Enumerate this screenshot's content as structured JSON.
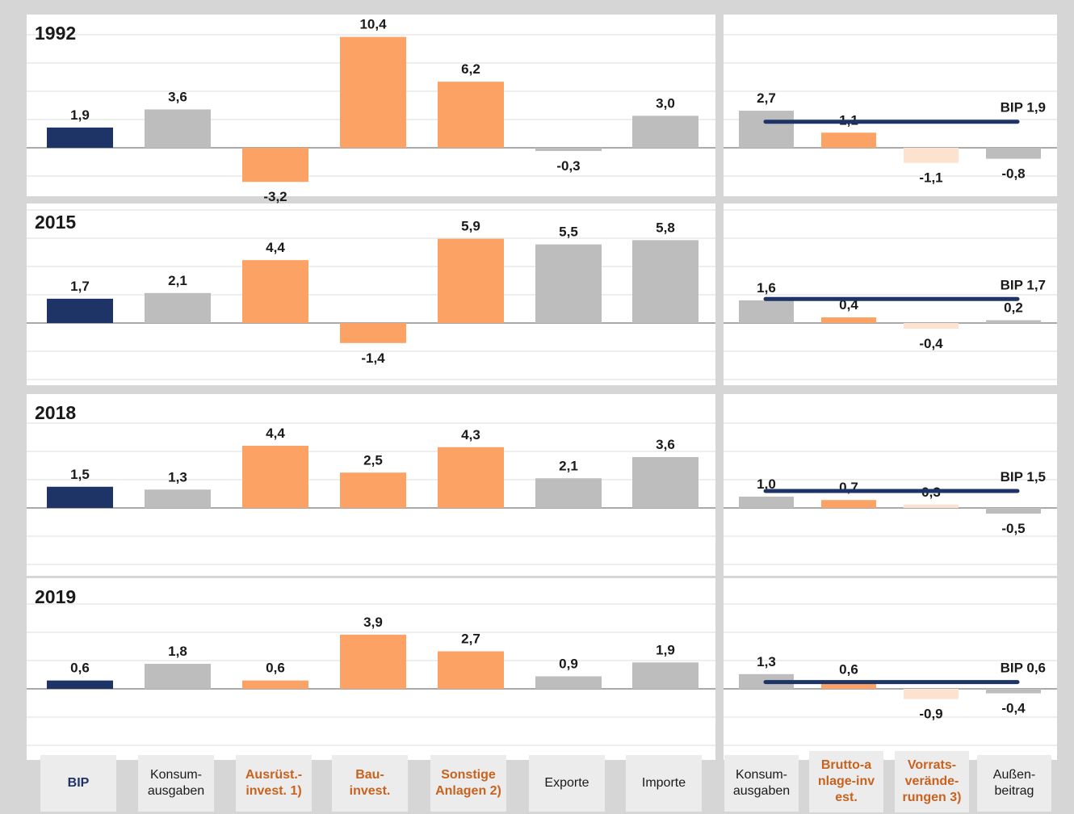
{
  "colors": {
    "bip": "#1e3466",
    "grey": "#bdbdbd",
    "orange": "#fca265",
    "light_orange": "#fde2cf",
    "gridline": "#eeeeee",
    "axis": "#aaaaaa",
    "bip_line": "#1e3466"
  },
  "categories_left": [
    {
      "label": "BIP",
      "style": "navy"
    },
    {
      "label": "Konsum-\nausgaben",
      "style": "plain"
    },
    {
      "label": "Ausrüst.-\ninvest. 1)",
      "style": "orange"
    },
    {
      "label": "Bau-\ninvest.",
      "style": "orange"
    },
    {
      "label": "Sonstige\nAnlagen 2)",
      "style": "orange"
    },
    {
      "label": "Exporte",
      "style": "plain"
    },
    {
      "label": "Importe",
      "style": "plain"
    }
  ],
  "categories_right": [
    {
      "label": "Konsum-\nausgaben",
      "style": "plain"
    },
    {
      "label": "Brutto-a\nnlage-inv\nest.",
      "style": "orange"
    },
    {
      "label": "Vorrats-\nverände-\nrungen 3)",
      "style": "orange"
    },
    {
      "label": "Außen-\nbeitrag",
      "style": "plain"
    }
  ],
  "chart_data": [
    {
      "type": "bar",
      "year": "1992",
      "left_values": [
        1.9,
        3.6,
        -3.2,
        10.4,
        6.2,
        -0.3,
        3.0
      ],
      "left_labels": [
        "1,9",
        "3,6",
        "-3,2",
        "10,4",
        "6,2",
        "-0,3",
        "3,0"
      ],
      "right_values": [
        2.7,
        1.1,
        -1.1,
        -0.8
      ],
      "right_labels": [
        "2,7",
        "1,1",
        "-1,1",
        "-0,8"
      ],
      "bip_label": "BIP 1,9",
      "bip_value": 1.9
    },
    {
      "type": "bar",
      "year": "2015",
      "left_values": [
        1.7,
        2.1,
        4.4,
        -1.4,
        5.9,
        5.5,
        5.8
      ],
      "left_labels": [
        "1,7",
        "2,1",
        "4,4",
        "-1,4",
        "5,9",
        "5,5",
        "5,8"
      ],
      "right_values": [
        1.6,
        0.4,
        -0.4,
        0.2
      ],
      "right_labels": [
        "1,6",
        "0,4",
        "-0,4",
        "0,2"
      ],
      "bip_label": "BIP 1,7",
      "bip_value": 1.7
    },
    {
      "type": "bar",
      "year": "2018",
      "left_values": [
        1.5,
        1.3,
        4.4,
        2.5,
        4.3,
        2.1,
        3.6
      ],
      "left_labels": [
        "1,5",
        "1,3",
        "4,4",
        "2,5",
        "4,3",
        "2,1",
        "3,6"
      ],
      "right_values": [
        1.0,
        0.7,
        0.3,
        -0.5
      ],
      "right_labels": [
        "1,0",
        "0,7",
        "0,3",
        "-0,5"
      ],
      "bip_label": "BIP 1,5",
      "bip_value": 1.5
    },
    {
      "type": "bar",
      "year": "2019",
      "left_values": [
        0.6,
        1.8,
        0.6,
        3.9,
        2.7,
        0.9,
        1.9
      ],
      "left_labels": [
        "0,6",
        "1,8",
        "0,6",
        "3,9",
        "2,7",
        "0,9",
        "1,9"
      ],
      "right_values": [
        1.3,
        0.6,
        -0.9,
        -0.4
      ],
      "right_labels": [
        "1,3",
        "0,6",
        "-0,9",
        "-0,4"
      ],
      "bip_label": "BIP 0,6",
      "bip_value": 0.6
    }
  ]
}
